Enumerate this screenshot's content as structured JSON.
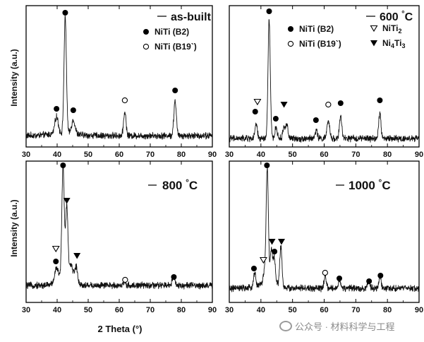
{
  "watermark": "公众号 · 材料科学与工程",
  "chart_data": [
    {
      "type": "line",
      "panel": "top-left",
      "legend": "as-built",
      "xlabel": "",
      "ylabel": "Intensity (a.u.)",
      "xlim": [
        30,
        90
      ],
      "xticks": [
        30,
        40,
        50,
        60,
        70,
        80,
        90
      ],
      "baseline": 0.08,
      "peaks": [
        {
          "x": 39.8,
          "h": 0.12,
          "w": 0.8
        },
        {
          "x": 42.6,
          "h": 0.82,
          "w": 0.55
        },
        {
          "x": 45.2,
          "h": 0.1,
          "w": 0.8
        },
        {
          "x": 61.8,
          "h": 0.17,
          "w": 0.55
        },
        {
          "x": 78.0,
          "h": 0.25,
          "w": 0.55
        }
      ],
      "markers": [
        {
          "x": 42.6,
          "y": 0.95,
          "type": "filled-circle"
        },
        {
          "x": 39.8,
          "y": 0.27,
          "type": "filled-circle"
        },
        {
          "x": 45.2,
          "y": 0.26,
          "type": "filled-circle"
        },
        {
          "x": 61.8,
          "y": 0.33,
          "type": "open-circle"
        },
        {
          "x": 78.0,
          "y": 0.4,
          "type": "filled-circle"
        }
      ],
      "phase_legend": [
        {
          "symbol": "filled-circle",
          "label": "NiTi (B2)"
        },
        {
          "symbol": "open-circle",
          "label": "NiTi (B19`)"
        }
      ]
    },
    {
      "type": "line",
      "panel": "top-right",
      "legend": "600 °C",
      "xlabel": "",
      "ylabel": "",
      "xlim": [
        30,
        90
      ],
      "xticks": [
        30,
        40,
        50,
        60,
        70,
        80,
        90
      ],
      "baseline": 0.06,
      "peaks": [
        {
          "x": 38.5,
          "h": 0.1,
          "w": 0.5
        },
        {
          "x": 42.6,
          "h": 0.84,
          "w": 0.5
        },
        {
          "x": 44.8,
          "h": 0.08,
          "w": 0.5
        },
        {
          "x": 47.3,
          "h": 0.08,
          "w": 0.5
        },
        {
          "x": 48.2,
          "h": 0.1,
          "w": 0.5
        },
        {
          "x": 57.5,
          "h": 0.06,
          "w": 0.5
        },
        {
          "x": 61.3,
          "h": 0.12,
          "w": 0.6
        },
        {
          "x": 65.2,
          "h": 0.16,
          "w": 0.5
        },
        {
          "x": 77.6,
          "h": 0.18,
          "w": 0.5
        }
      ],
      "markers": [
        {
          "x": 42.6,
          "y": 0.96,
          "type": "filled-circle"
        },
        {
          "x": 38.9,
          "y": 0.32,
          "type": "open-triangle-down"
        },
        {
          "x": 38.2,
          "y": 0.25,
          "type": "filled-circle"
        },
        {
          "x": 44.7,
          "y": 0.2,
          "type": "filled-circle"
        },
        {
          "x": 47.3,
          "y": 0.3,
          "type": "filled-triangle-down"
        },
        {
          "x": 57.4,
          "y": 0.19,
          "type": "filled-circle"
        },
        {
          "x": 61.3,
          "y": 0.3,
          "type": "open-circle"
        },
        {
          "x": 65.2,
          "y": 0.31,
          "type": "filled-circle"
        },
        {
          "x": 77.6,
          "y": 0.33,
          "type": "filled-circle"
        }
      ],
      "phase_legend": [
        {
          "symbol": "filled-circle",
          "label": "NiTi (B2)"
        },
        {
          "symbol": "open-circle",
          "label": "NiTi (B19`)"
        },
        {
          "symbol": "open-triangle-down",
          "label": "NiTi",
          "sub": "2"
        },
        {
          "symbol": "filled-triangle-down",
          "label": "Ni",
          "sub": "4",
          "label2": "Ti",
          "sub2": "3"
        }
      ]
    },
    {
      "type": "line",
      "panel": "bottom-left",
      "legend": "800 °C",
      "xlabel": "2 Theta (°)",
      "ylabel": "Intensity (a.u.)",
      "xlim": [
        30,
        90
      ],
      "xticks": [
        30,
        40,
        50,
        60,
        70,
        80,
        90
      ],
      "baseline": 0.12,
      "peaks": [
        {
          "x": 39.8,
          "h": 0.1,
          "w": 0.8
        },
        {
          "x": 41.9,
          "h": 0.8,
          "w": 0.55
        },
        {
          "x": 43.1,
          "h": 0.5,
          "w": 0.5
        },
        {
          "x": 44.5,
          "h": 0.1,
          "w": 1.2
        },
        {
          "x": 46.2,
          "h": 0.1,
          "w": 0.6
        },
        {
          "x": 61.8,
          "h": 0.03,
          "w": 0.5
        },
        {
          "x": 77.5,
          "h": 0.07,
          "w": 0.6
        }
      ],
      "markers": [
        {
          "x": 41.9,
          "y": 0.97,
          "type": "filled-circle"
        },
        {
          "x": 43.1,
          "y": 0.72,
          "type": "filled-triangle-down"
        },
        {
          "x": 39.6,
          "y": 0.38,
          "type": "open-triangle-down"
        },
        {
          "x": 39.6,
          "y": 0.29,
          "type": "filled-circle"
        },
        {
          "x": 46.4,
          "y": 0.33,
          "type": "filled-triangle-down"
        },
        {
          "x": 61.9,
          "y": 0.16,
          "type": "open-circle"
        },
        {
          "x": 77.6,
          "y": 0.18,
          "type": "filled-circle"
        }
      ],
      "phase_legend": []
    },
    {
      "type": "line",
      "panel": "bottom-right",
      "legend": "1000 °C",
      "xlabel": "",
      "ylabel": "",
      "xlim": [
        30,
        90
      ],
      "xticks": [
        30,
        40,
        50,
        60,
        70,
        80,
        90
      ],
      "baseline": 0.1,
      "peaks": [
        {
          "x": 38.0,
          "h": 0.1,
          "w": 0.5
        },
        {
          "x": 41.1,
          "h": 0.07,
          "w": 0.5
        },
        {
          "x": 42.0,
          "h": 0.8,
          "w": 0.5
        },
        {
          "x": 43.3,
          "h": 0.22,
          "w": 0.5
        },
        {
          "x": 44.2,
          "h": 0.18,
          "w": 0.5
        },
        {
          "x": 46.3,
          "h": 0.28,
          "w": 0.5
        },
        {
          "x": 60.3,
          "h": 0.08,
          "w": 0.5
        },
        {
          "x": 64.8,
          "h": 0.06,
          "w": 0.5
        },
        {
          "x": 74.0,
          "h": 0.05,
          "w": 0.5
        },
        {
          "x": 77.7,
          "h": 0.08,
          "w": 0.5
        }
      ],
      "markers": [
        {
          "x": 41.9,
          "y": 0.97,
          "type": "filled-circle"
        },
        {
          "x": 43.5,
          "y": 0.43,
          "type": "filled-triangle-down"
        },
        {
          "x": 46.5,
          "y": 0.43,
          "type": "filled-triangle-down"
        },
        {
          "x": 44.3,
          "y": 0.36,
          "type": "filled-circle"
        },
        {
          "x": 40.8,
          "y": 0.3,
          "type": "open-triangle-down"
        },
        {
          "x": 37.8,
          "y": 0.24,
          "type": "filled-circle"
        },
        {
          "x": 60.3,
          "y": 0.21,
          "type": "open-circle"
        },
        {
          "x": 64.8,
          "y": 0.17,
          "type": "filled-circle"
        },
        {
          "x": 74.2,
          "y": 0.15,
          "type": "filled-circle"
        },
        {
          "x": 77.8,
          "y": 0.19,
          "type": "filled-circle"
        }
      ],
      "phase_legend": []
    }
  ]
}
